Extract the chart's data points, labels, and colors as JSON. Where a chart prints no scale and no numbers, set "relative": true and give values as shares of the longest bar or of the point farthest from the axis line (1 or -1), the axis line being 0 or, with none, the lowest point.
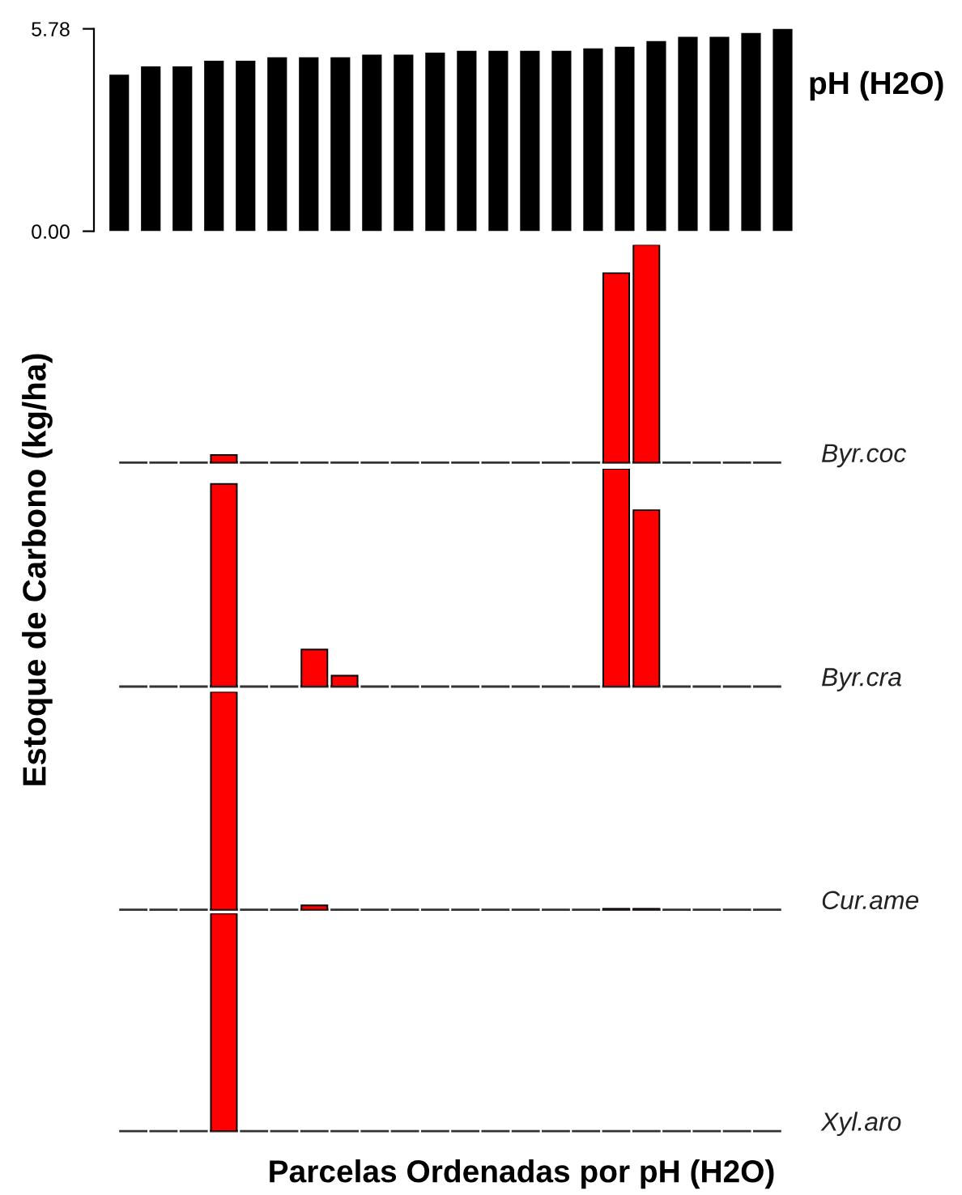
{
  "chart_data": [
    {
      "type": "bar",
      "title": "pH (H2O)",
      "categories": [
        null,
        null,
        null,
        null,
        null,
        null,
        null,
        null,
        null,
        null,
        null,
        null,
        null,
        null,
        null,
        null,
        null,
        null,
        null,
        null,
        null,
        null
      ],
      "values": [
        4.47,
        4.71,
        4.71,
        4.87,
        4.87,
        4.97,
        4.97,
        4.97,
        5.04,
        5.04,
        5.1,
        5.15,
        5.15,
        5.15,
        5.15,
        5.22,
        5.27,
        5.43,
        5.55,
        5.55,
        5.66,
        5.78
      ],
      "color": "#000000",
      "ylim": [
        0,
        5.78
      ],
      "yticks": [
        {
          "value": 0,
          "label": "0.00"
        },
        5.78
      ],
      "tick_labels": "y"
    },
    {
      "type": "bar",
      "ylabel": "Byr.coc",
      "categories": [
        null,
        null,
        null,
        null,
        null,
        null,
        null,
        null,
        null,
        null,
        null,
        null,
        null,
        null,
        null,
        null,
        null,
        null,
        null,
        null,
        null,
        null
      ],
      "values": [
        0,
        0,
        0,
        0.035,
        0,
        0,
        0,
        0,
        0,
        0,
        0,
        0,
        0,
        0,
        0,
        0,
        0.87,
        1,
        0,
        0,
        0,
        0
      ],
      "color": "#ff0000",
      "relative": true
    },
    {
      "type": "bar",
      "ylabel": "Byr.cra",
      "annotations": [
        "Estoque de Carbono (kg/ha)"
      ],
      "categories": [
        null,
        null,
        null,
        null,
        null,
        null,
        null,
        null,
        null,
        null,
        null,
        null,
        null,
        null,
        null,
        null,
        null,
        null,
        null,
        null,
        null,
        null
      ],
      "values": [
        0,
        0,
        0,
        0.93,
        0,
        0,
        0.17,
        0.05,
        0,
        0,
        0,
        0,
        0,
        0,
        0,
        0,
        1,
        0.81,
        0,
        0,
        0,
        0
      ],
      "color": "#ff0000",
      "relative": true
    },
    {
      "type": "bar",
      "ylabel": "Cur.ame",
      "categories": [
        null,
        null,
        null,
        null,
        null,
        null,
        null,
        null,
        null,
        null,
        null,
        null,
        null,
        null,
        null,
        null,
        null,
        null,
        null,
        null,
        null,
        null
      ],
      "values": [
        0,
        0,
        0,
        1,
        0,
        0,
        0.02,
        0,
        0,
        0,
        0,
        0,
        0,
        0,
        0,
        0,
        0.004,
        0.004,
        0,
        0,
        0,
        0
      ],
      "color": "#ff0000",
      "relative": true
    },
    {
      "type": "bar",
      "ylabel": "Xyl.aro",
      "xlabel": "Parcelas Ordenadas por pH (H2O)",
      "categories": [
        null,
        null,
        null,
        null,
        null,
        null,
        null,
        null,
        null,
        null,
        null,
        null,
        null,
        null,
        null,
        null,
        null,
        null,
        null,
        null,
        null,
        null
      ],
      "values": [
        0,
        0,
        0,
        1,
        0,
        0,
        0,
        0,
        0,
        0,
        0,
        0,
        0,
        0,
        0,
        0,
        0,
        0,
        0,
        0,
        0,
        0
      ],
      "color": "#ff0000",
      "relative": true
    }
  ]
}
